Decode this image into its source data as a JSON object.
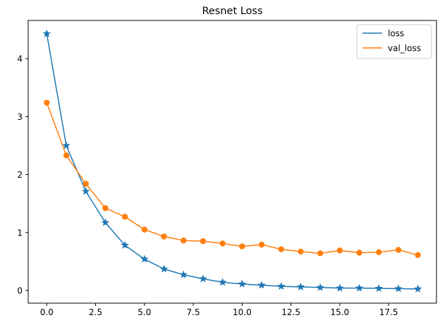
{
  "chart_data": {
    "type": "line",
    "title": "Resnet Loss",
    "xlabel": "",
    "ylabel": "",
    "xlim": [
      -0.95,
      19.95
    ],
    "ylim": [
      -0.22,
      4.66
    ],
    "xticks": [
      0,
      2.5,
      5,
      7.5,
      10,
      12.5,
      15,
      17.5
    ],
    "xtick_labels": [
      "0.0",
      "2.5",
      "5.0",
      "7.5",
      "10.0",
      "12.5",
      "15.0",
      "17.5"
    ],
    "yticks": [
      0,
      1,
      2,
      3,
      4
    ],
    "ytick_labels": [
      "0",
      "1",
      "2",
      "3",
      "4"
    ],
    "grid": false,
    "legend_position": "upper right",
    "x": [
      0,
      1,
      2,
      3,
      4,
      5,
      6,
      7,
      8,
      9,
      10,
      11,
      12,
      13,
      14,
      15,
      16,
      17,
      18,
      19
    ],
    "series": [
      {
        "name": "loss",
        "color": "#1f77b4",
        "marker": "star",
        "values": [
          4.43,
          2.5,
          1.71,
          1.17,
          0.78,
          0.54,
          0.37,
          0.27,
          0.2,
          0.14,
          0.11,
          0.09,
          0.07,
          0.06,
          0.05,
          0.04,
          0.04,
          0.035,
          0.03,
          0.025
        ]
      },
      {
        "name": "val_loss",
        "color": "#ff7f0e",
        "marker": "circle",
        "values": [
          3.24,
          2.33,
          1.84,
          1.42,
          1.27,
          1.05,
          0.93,
          0.86,
          0.85,
          0.81,
          0.76,
          0.79,
          0.71,
          0.67,
          0.64,
          0.69,
          0.65,
          0.66,
          0.7,
          0.61
        ]
      }
    ]
  }
}
